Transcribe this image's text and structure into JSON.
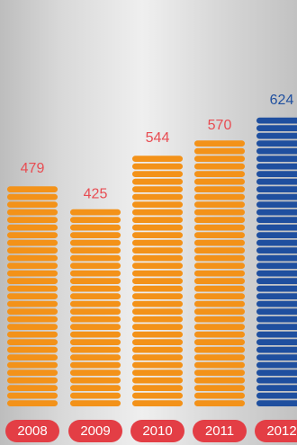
{
  "colors": {
    "standard": "#f39219",
    "highlight": "#1f4f9f",
    "label": "#e84c52",
    "tick_bg": "#e33e45",
    "tick_text": "#ffffff"
  },
  "chart_data": {
    "type": "bar",
    "categories": [
      "2008",
      "2009",
      "2010",
      "2011",
      "2012"
    ],
    "values": [
      479,
      425,
      544,
      570,
      624
    ],
    "data_labels": [
      "479",
      "425",
      "544",
      "570",
      "624"
    ],
    "highlight_category": "2012",
    "title": "",
    "xlabel": "",
    "ylabel": "",
    "grid": false,
    "legend": "none"
  }
}
